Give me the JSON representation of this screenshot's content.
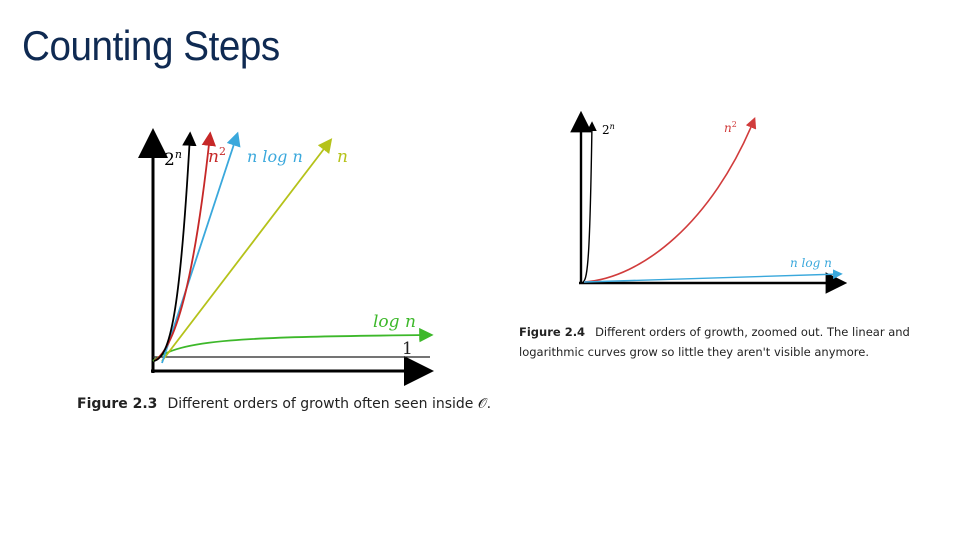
{
  "slide": {
    "title": "Counting Steps"
  },
  "figure_left": {
    "caption_label": "Figure 2.3",
    "caption_text": "Different orders of growth often seen inside 𝒪.",
    "labels": {
      "exp_base": "2",
      "exp_sup": "n",
      "quad_base": "n",
      "quad_sup": "2",
      "nlogn": "n log n",
      "linear": "n",
      "log": "log n",
      "const": "1"
    },
    "colors": {
      "exp": "#000000",
      "quad": "#c62828",
      "nlogn": "#3aa8dc",
      "linear": "#b5c21a",
      "log": "#3db82a",
      "const": "#222222"
    }
  },
  "figure_right": {
    "caption_label": "Figure 2.4",
    "caption_text": "Different orders of growth, zoomed out.  The linear and logarithmic curves grow so little they aren't visible anymore.",
    "labels": {
      "exp_base": "2",
      "exp_sup": "n",
      "quad_base": "n",
      "quad_sup": "2",
      "nlogn": "n log n"
    },
    "colors": {
      "exp": "#000000",
      "quad": "#d13c3c",
      "nlogn": "#3aa8dc"
    }
  }
}
